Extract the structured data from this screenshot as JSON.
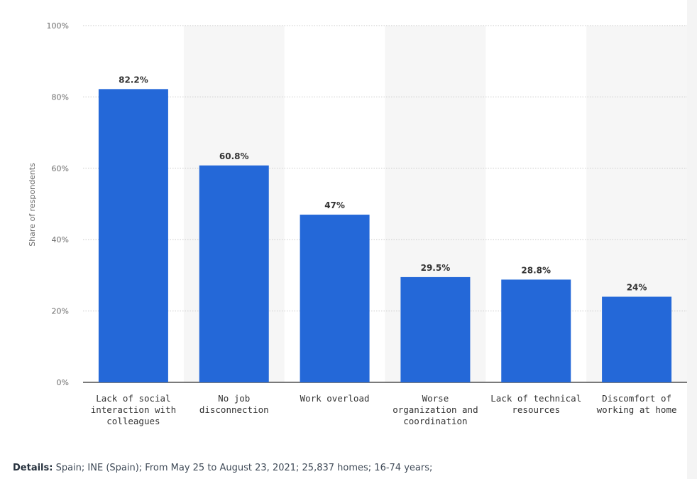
{
  "chart_data": {
    "type": "bar",
    "title": "",
    "xlabel": "",
    "ylabel": "Share of respondents",
    "ylim": [
      0,
      100
    ],
    "yticks": [
      0,
      20,
      40,
      60,
      80,
      100
    ],
    "ytick_labels": [
      "0%",
      "20%",
      "40%",
      "60%",
      "80%",
      "100%"
    ],
    "categories": [
      [
        "Lack of social",
        "interaction with",
        "colleagues"
      ],
      [
        "No job",
        "disconnection"
      ],
      [
        "Work overload"
      ],
      [
        "Worse",
        "organization and",
        "coordination"
      ],
      [
        "Lack of technical",
        "resources"
      ],
      [
        "Discomfort of",
        "working at home"
      ]
    ],
    "values": [
      82.2,
      60.8,
      47,
      29.5,
      28.8,
      24
    ],
    "data_labels": [
      "82.2%",
      "60.8%",
      "47%",
      "29.5%",
      "28.8%",
      "24%"
    ],
    "grid": true,
    "alternating_column_shading": true,
    "bar_color": "#2468d8",
    "shade_color": "#f6f6f6"
  },
  "details": {
    "label": "Details:",
    "text": " Spain; INE (Spain); From May 25 to August 23, 2021; 25,837 homes; 16-74 years;"
  }
}
